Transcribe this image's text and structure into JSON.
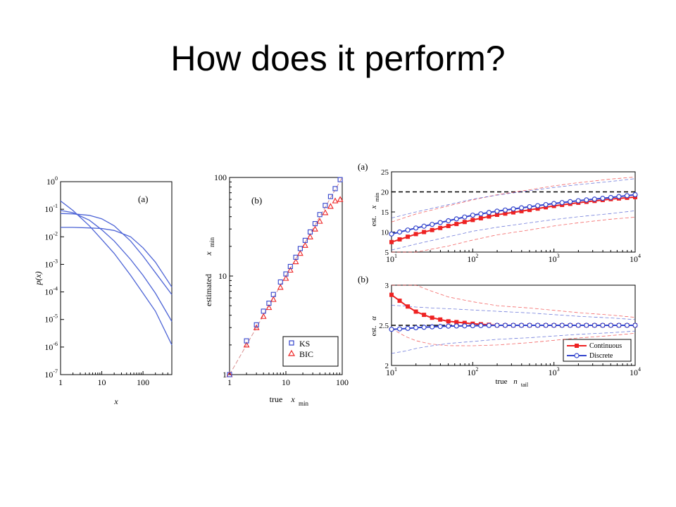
{
  "title": "How does it perform?",
  "colors": {
    "blue": "#3344cc",
    "red": "#ee2222",
    "curve": "#4d64d6",
    "diag": "#d88f8f"
  },
  "chart_data": [
    {
      "panel": "(a)",
      "type": "line",
      "xlabel": "x",
      "ylabel": "p(x)",
      "xscale": "log",
      "yscale": "log",
      "xlim": [
        1,
        500
      ],
      "ylim": [
        1e-07,
        1
      ],
      "xticks": [
        "1",
        "10",
        "100"
      ],
      "yticks": [
        "10",
        "10",
        "10",
        "10",
        "10",
        "10",
        "10",
        "10"
      ],
      "yticks_exp": [
        "0",
        "-1",
        "-2",
        "-3",
        "-4",
        "-5",
        "-6",
        "-7"
      ],
      "series": [
        {
          "x": [
            1,
            2,
            5,
            10,
            20,
            50,
            100,
            200,
            500
          ],
          "y": [
            0.2,
            0.09,
            0.025,
            0.008,
            0.0025,
            0.0004,
            9e-05,
            2e-05,
            1.2e-06
          ]
        },
        {
          "x": [
            1,
            2,
            5,
            10,
            20,
            50,
            100,
            200,
            500
          ],
          "y": [
            0.09,
            0.075,
            0.04,
            0.018,
            0.007,
            0.0015,
            0.0004,
            9e-05,
            8.5e-06
          ]
        },
        {
          "x": [
            1,
            2,
            5,
            10,
            20,
            50,
            100,
            200,
            500
          ],
          "y": [
            0.07,
            0.068,
            0.06,
            0.045,
            0.025,
            0.007,
            0.002,
            0.0005,
            8e-05
          ]
        },
        {
          "x": [
            1,
            2,
            5,
            10,
            20,
            50,
            100,
            200,
            500
          ],
          "y": [
            0.022,
            0.022,
            0.021,
            0.02,
            0.017,
            0.01,
            0.004,
            0.0012,
            0.00015
          ]
        }
      ]
    },
    {
      "panel": "(b)",
      "type": "scatter",
      "xlabel": "true",
      "xlabel_var": "x",
      "xlabel_sub": "min",
      "ylabel": "estimated",
      "ylabel_var": "x",
      "ylabel_sub": "min",
      "xscale": "log",
      "yscale": "log",
      "xlim": [
        1,
        100
      ],
      "ylim": [
        1,
        100
      ],
      "xticks": [
        "1",
        "10",
        "100"
      ],
      "yticks": [
        "1",
        "10",
        "100"
      ],
      "legend": [
        "KS",
        "BIC"
      ],
      "series": [
        {
          "name": "KS",
          "x": [
            1,
            2,
            3,
            4,
            5,
            6,
            8,
            10,
            12,
            15,
            18,
            22,
            27,
            33,
            40,
            50,
            62,
            75,
            92
          ],
          "y": [
            1,
            2.2,
            3.2,
            4.4,
            5.3,
            6.5,
            8.7,
            10.5,
            12.5,
            15.5,
            19,
            23,
            28,
            34,
            42,
            52,
            64,
            77,
            95
          ]
        },
        {
          "name": "BIC",
          "x": [
            1,
            2,
            3,
            4,
            5,
            6,
            8,
            10,
            12,
            15,
            18,
            22,
            27,
            33,
            40,
            50,
            62,
            75,
            92
          ],
          "y": [
            1,
            2,
            3,
            3.9,
            4.8,
            5.8,
            7.7,
            9.5,
            11.5,
            14,
            17,
            20.5,
            25,
            30,
            36,
            44,
            51,
            58,
            60
          ]
        }
      ]
    },
    {
      "panel": "(a)",
      "type": "line",
      "xlabel": "",
      "ylabel": "est.",
      "ylabel_var": "x",
      "ylabel_sub": "min",
      "xscale": "log",
      "xlim": [
        10,
        10000
      ],
      "ylim": [
        5,
        25
      ],
      "xticks": [
        "10",
        "10",
        "10",
        "10"
      ],
      "xticks_exp": [
        "1",
        "2",
        "3",
        "4"
      ],
      "yticks": [
        "5",
        "10",
        "15",
        "20",
        "25"
      ],
      "reference": 20,
      "series": [
        {
          "name": "Continuous",
          "x": [
            10,
            20,
            50,
            100,
            200,
            500,
            1000,
            2000,
            5000,
            10000
          ],
          "y": [
            7.5,
            9.5,
            11.5,
            13,
            14.3,
            15.5,
            16.5,
            17.3,
            18.2,
            18.7
          ]
        },
        {
          "name": "Discrete",
          "x": [
            10,
            20,
            50,
            100,
            200,
            500,
            1000,
            2000,
            5000,
            10000
          ],
          "y": [
            9.5,
            11,
            12.8,
            14.2,
            15.2,
            16.3,
            17.1,
            17.8,
            18.6,
            19.3
          ]
        }
      ]
    },
    {
      "panel": "(b)",
      "type": "line",
      "xlabel": "true",
      "xlabel_var": "n",
      "xlabel_sub": "tail",
      "ylabel": "est.",
      "ylabel_var": "α",
      "xscale": "log",
      "xlim": [
        10,
        10000
      ],
      "ylim": [
        2,
        3
      ],
      "xticks": [
        "10",
        "10",
        "10",
        "10"
      ],
      "xticks_exp": [
        "1",
        "2",
        "3",
        "4"
      ],
      "yticks": [
        "2",
        "2.5",
        "3"
      ],
      "reference": 2.5,
      "legend": [
        "Continuous",
        "Discrete"
      ],
      "series": [
        {
          "name": "Continuous",
          "x": [
            10,
            15,
            20,
            30,
            50,
            100,
            200,
            500,
            1000,
            2000,
            5000,
            10000
          ],
          "y": [
            2.88,
            2.75,
            2.67,
            2.6,
            2.55,
            2.52,
            2.5,
            2.5,
            2.5,
            2.5,
            2.5,
            2.5
          ]
        },
        {
          "name": "Discrete",
          "x": [
            10,
            15,
            20,
            30,
            50,
            100,
            200,
            500,
            1000,
            2000,
            5000,
            10000
          ],
          "y": [
            2.45,
            2.46,
            2.47,
            2.48,
            2.49,
            2.495,
            2.5,
            2.5,
            2.5,
            2.5,
            2.5,
            2.5
          ]
        }
      ]
    }
  ]
}
